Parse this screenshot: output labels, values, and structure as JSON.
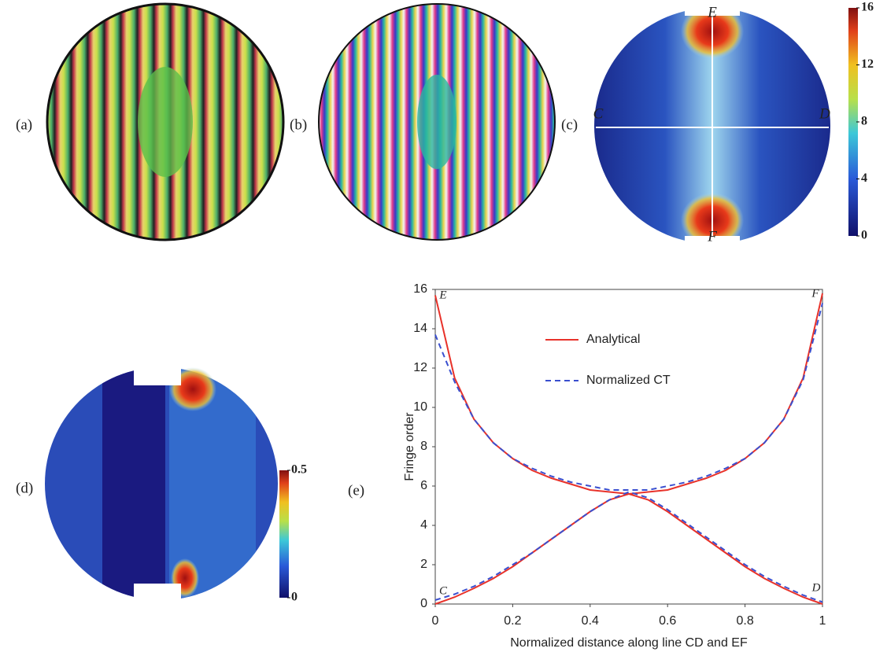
{
  "panels": {
    "a": "(a)",
    "b": "(b)",
    "c": "(c)",
    "d": "(d)",
    "e": "(e)"
  },
  "panel_c_points": [
    "C",
    "D",
    "E",
    "F"
  ],
  "colorbar_c": {
    "ticks": [
      16,
      12,
      8,
      4,
      0
    ]
  },
  "colorbar_d": {
    "ticks": [
      0.5,
      0
    ]
  },
  "chart_data": {
    "type": "line",
    "xlabel": "Normalized distance along line CD and EF",
    "ylabel": "Fringe order",
    "x": [
      0,
      0.05,
      0.1,
      0.15,
      0.2,
      0.25,
      0.3,
      0.35,
      0.4,
      0.45,
      0.5,
      0.55,
      0.6,
      0.65,
      0.7,
      0.75,
      0.8,
      0.85,
      0.9,
      0.95,
      1
    ],
    "series": [
      {
        "name": "Analytical",
        "color": "#e8322a",
        "dashed": false,
        "cd": [
          0,
          0.35,
          0.8,
          1.3,
          1.9,
          2.6,
          3.3,
          4.0,
          4.7,
          5.3,
          5.6,
          5.3,
          4.7,
          4.0,
          3.3,
          2.6,
          1.9,
          1.3,
          0.8,
          0.35,
          0
        ],
        "ef": [
          15.7,
          11.5,
          9.4,
          8.2,
          7.4,
          6.8,
          6.4,
          6.1,
          5.8,
          5.7,
          5.6,
          5.7,
          5.8,
          6.1,
          6.4,
          6.8,
          7.4,
          8.2,
          9.4,
          11.5,
          15.8
        ]
      },
      {
        "name": "Normalized CT",
        "color": "#3a4fcf",
        "dashed": true,
        "cd": [
          0.2,
          0.5,
          0.9,
          1.4,
          2.0,
          2.6,
          3.3,
          4.0,
          4.7,
          5.3,
          5.7,
          5.4,
          4.8,
          4.1,
          3.4,
          2.7,
          2.0,
          1.4,
          0.9,
          0.45,
          0.1
        ],
        "ef": [
          13.7,
          11.3,
          9.4,
          8.2,
          7.4,
          6.9,
          6.5,
          6.2,
          6.0,
          5.8,
          5.8,
          5.8,
          6.0,
          6.2,
          6.5,
          6.9,
          7.4,
          8.2,
          9.4,
          11.4,
          15.3
        ]
      }
    ],
    "annotations": [
      "E",
      "F",
      "C",
      "D"
    ],
    "xlim": [
      0,
      1
    ],
    "xticks": [
      0,
      0.2,
      0.4,
      0.6,
      0.8,
      1
    ],
    "ylim": [
      0,
      16
    ],
    "yticks": [
      0,
      2,
      4,
      6,
      8,
      10,
      12,
      14,
      16
    ]
  }
}
